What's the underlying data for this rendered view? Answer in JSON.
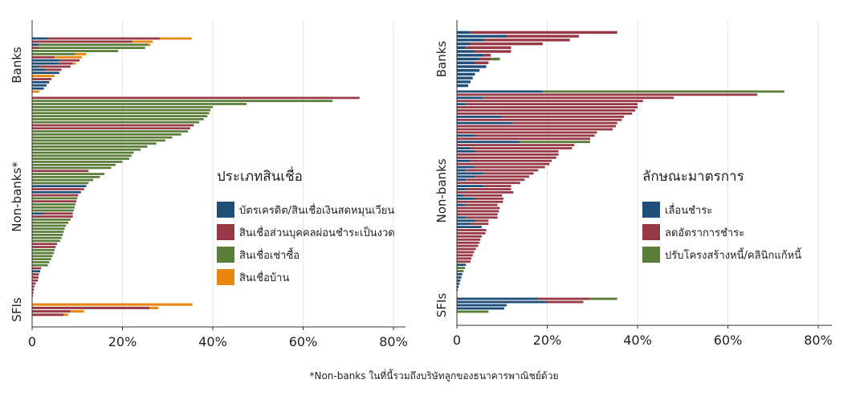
{
  "colors": {
    "blue": "#1f4e79",
    "red": "#973a45",
    "green": "#5a7d3a",
    "orange": "#e8870e",
    "grid": "#e6e6e6",
    "axis": "#333333"
  },
  "footnote": "*Non-banks ในที่นี้รวมถึงบริษัทลูกของธนาคารพาณิชย์ด้วย",
  "chart_data": [
    {
      "type": "bar",
      "orientation": "horizontal",
      "stacked": true,
      "xlim": [
        0,
        80
      ],
      "xticks": [
        "0",
        "20%",
        "40%",
        "60%",
        "80%"
      ],
      "grid": true,
      "legend": {
        "title": "ประเภทสินเชื่อ",
        "placement": "right",
        "items": [
          {
            "label": "บัตรเครดิต/สินเชื่อเงินสดหมุนเวียน",
            "color": "blue"
          },
          {
            "label": "สินเชื่อส่วนบุคคลผ่อนชำระเป็นงวด",
            "color": "red"
          },
          {
            "label": "สินเชื่อเช่าซื้อ",
            "color": "green"
          },
          {
            "label": "สินเชื่อบ้าน",
            "color": "orange"
          }
        ]
      },
      "groups": [
        {
          "label": "Banks",
          "series_keys": [
            "blue",
            "red",
            "green",
            "orange"
          ],
          "rows": [
            [
              3.5,
              24.8,
              0,
              7
            ],
            [
              0,
              22.2,
              0,
              4.5
            ],
            [
              1.5,
              0,
              24.2,
              0.5
            ],
            [
              0,
              1.5,
              23.5,
              0
            ],
            [
              0,
              0,
              19,
              0
            ],
            [
              0,
              0,
              9.5,
              2.5
            ],
            [
              0,
              5,
              0,
              6
            ],
            [
              6.2,
              4.3,
              0,
              0
            ],
            [
              6,
              3,
              0,
              0.7
            ],
            [
              1.5,
              7,
              0,
              0
            ],
            [
              3,
              3.5,
              0,
              0
            ],
            [
              6,
              0,
              0,
              0
            ],
            [
              0,
              0,
              0,
              5
            ],
            [
              0,
              4.3,
              0,
              0
            ],
            [
              3.8,
              0,
              0,
              0
            ],
            [
              3.2,
              0,
              0,
              0
            ],
            [
              2.6,
              0,
              0,
              0
            ],
            [
              0,
              0,
              0,
              1.6
            ]
          ]
        },
        {
          "label": "Non-banks*",
          "series_keys": [
            "blue",
            "red",
            "green",
            "orange"
          ],
          "rows": [
            [
              0,
              72.5,
              0,
              0
            ],
            [
              0,
              0,
              66.5,
              0
            ],
            [
              0,
              0,
              47.5,
              0
            ],
            [
              0,
              0,
              40,
              0
            ],
            [
              0,
              0,
              39.5,
              0
            ],
            [
              0,
              0,
              39.2,
              0
            ],
            [
              0,
              0,
              38.8,
              0
            ],
            [
              0,
              0,
              38,
              0
            ],
            [
              0,
              0,
              37,
              0
            ],
            [
              0,
              35.8,
              0,
              0
            ],
            [
              0,
              35,
              0,
              0
            ],
            [
              0,
              0,
              34.5,
              0
            ],
            [
              0,
              0,
              33,
              0
            ],
            [
              0,
              0,
              31,
              0
            ],
            [
              0,
              0,
              29.5,
              0
            ],
            [
              0,
              0,
              27.5,
              0
            ],
            [
              0,
              0,
              25.5,
              0
            ],
            [
              0,
              0,
              24,
              0
            ],
            [
              0,
              0,
              22.5,
              0
            ],
            [
              0,
              0,
              22,
              0
            ],
            [
              0,
              0,
              21.5,
              0
            ],
            [
              0,
              0,
              20,
              0
            ],
            [
              0,
              0,
              18.5,
              0
            ],
            [
              0,
              0,
              17.5,
              0
            ],
            [
              0,
              12.5,
              0,
              0
            ],
            [
              0,
              0,
              16,
              0
            ],
            [
              0,
              0,
              15,
              0
            ],
            [
              0,
              0,
              13.5,
              0
            ],
            [
              0,
              0,
              12.5,
              0
            ],
            [
              12,
              0,
              0,
              0
            ],
            [
              0,
              11.5,
              0,
              0
            ],
            [
              10.8,
              0,
              0,
              0
            ],
            [
              0,
              10.2,
              0,
              0
            ],
            [
              0,
              0,
              10,
              0
            ],
            [
              0,
              9.8,
              0,
              0
            ],
            [
              0,
              0,
              9.6,
              0
            ],
            [
              0,
              0,
              9.4,
              0
            ],
            [
              0,
              0,
              9.2,
              0
            ],
            [
              2.5,
              6.5,
              0,
              0
            ],
            [
              0,
              9,
              0,
              0
            ],
            [
              0,
              0,
              8.5,
              0
            ],
            [
              0,
              0,
              8,
              0
            ],
            [
              0,
              0,
              7.5,
              0
            ],
            [
              0,
              0,
              7.2,
              0
            ],
            [
              0,
              0,
              7,
              0
            ],
            [
              0,
              0,
              6.8,
              0
            ],
            [
              0,
              0,
              6.5,
              0
            ],
            [
              0,
              0,
              6.2,
              0
            ],
            [
              0,
              5.5,
              0,
              0
            ],
            [
              0,
              5.2,
              0,
              0
            ],
            [
              0,
              0,
              5,
              0
            ],
            [
              0,
              0,
              4.8,
              0
            ],
            [
              0,
              0,
              4.5,
              0
            ],
            [
              0,
              0,
              4.2,
              0
            ],
            [
              0,
              0,
              3.8,
              0
            ],
            [
              0,
              0,
              3.5,
              0
            ],
            [
              0,
              2,
              0,
              0
            ],
            [
              1.8,
              0,
              0,
              0
            ],
            [
              0,
              1.5,
              0,
              0
            ],
            [
              0,
              1.4,
              0,
              0
            ],
            [
              0,
              1.3,
              0,
              0
            ],
            [
              0,
              0.8,
              0,
              0
            ],
            [
              0,
              0.5,
              0,
              0
            ],
            [
              0,
              0.4,
              0,
              0
            ],
            [
              0,
              0.3,
              0,
              0
            ],
            [
              0,
              0.2,
              0,
              0
            ]
          ]
        },
        {
          "label": "SFIs",
          "series_keys": [
            "blue",
            "red",
            "green",
            "orange"
          ],
          "rows": [
            [
              0,
              0,
              0,
              35.5
            ],
            [
              0,
              26,
              0,
              2
            ],
            [
              0,
              8.5,
              0,
              3
            ],
            [
              0,
              7,
              0,
              1
            ]
          ]
        }
      ]
    },
    {
      "type": "bar",
      "orientation": "horizontal",
      "stacked": true,
      "xlim": [
        0,
        80
      ],
      "xticks": [
        "0",
        "20%",
        "40%",
        "60%",
        "80%"
      ],
      "grid": true,
      "legend": {
        "title": "ลักษณะมาตรการ",
        "placement": "right",
        "items": [
          {
            "label": "เลื่อนชำระ",
            "color": "blue"
          },
          {
            "label": "ลดอัตราการชำระ",
            "color": "red"
          },
          {
            "label": "ปรับโครงสร้างหนี้/คลินิกแก้หนี้",
            "color": "green"
          }
        ]
      },
      "groups": [
        {
          "label": "Banks",
          "series_keys": [
            "blue",
            "red",
            "green"
          ],
          "rows": [
            [
              3,
              32.5,
              0
            ],
            [
              11,
              16,
              0
            ],
            [
              6,
              19,
              0
            ],
            [
              3,
              16,
              0
            ],
            [
              2,
              10,
              0
            ],
            [
              4,
              8,
              0
            ],
            [
              6,
              1.5,
              0
            ],
            [
              5,
              2.5,
              2
            ],
            [
              4,
              3,
              0
            ],
            [
              6.5,
              0,
              0
            ],
            [
              5,
              0,
              0
            ],
            [
              4,
              0,
              0
            ],
            [
              3.5,
              0,
              0
            ],
            [
              3,
              0,
              0
            ],
            [
              2.5,
              0,
              0
            ]
          ]
        },
        {
          "label": "Non-banks",
          "series_keys": [
            "blue",
            "red",
            "green"
          ],
          "rows": [
            [
              19,
              0,
              53.5
            ],
            [
              0,
              66.5,
              0
            ],
            [
              6,
              42,
              0
            ],
            [
              0,
              41.2,
              0
            ],
            [
              2,
              38,
              0
            ],
            [
              0,
              40,
              0
            ],
            [
              0,
              39.5,
              0
            ],
            [
              0,
              38.8,
              0
            ],
            [
              10,
              27,
              0
            ],
            [
              0,
              36.5,
              0
            ],
            [
              12.5,
              23,
              0
            ],
            [
              0,
              35.2,
              0
            ],
            [
              0,
              34.5,
              0
            ],
            [
              0,
              31,
              0
            ],
            [
              4,
              26.5,
              0
            ],
            [
              0,
              29.5,
              0
            ],
            [
              14,
              0,
              15.5
            ],
            [
              0,
              26,
              0
            ],
            [
              3,
              22.5,
              0
            ],
            [
              4,
              18.5,
              0
            ],
            [
              0,
              22.5,
              0
            ],
            [
              0,
              22,
              0
            ],
            [
              3,
              18,
              0
            ],
            [
              0,
              20.5,
              0
            ],
            [
              4,
              15.5,
              0
            ],
            [
              2,
              16,
              0
            ],
            [
              6,
              11,
              0
            ],
            [
              4,
              12,
              0
            ],
            [
              2,
              13,
              0
            ],
            [
              0,
              14,
              0
            ],
            [
              6,
              6,
              0
            ],
            [
              2,
              10,
              0
            ],
            [
              0,
              12.5,
              0
            ],
            [
              1.5,
              8.5,
              0
            ],
            [
              4,
              6.3,
              0
            ],
            [
              0,
              10.2,
              0
            ],
            [
              2,
              7,
              0
            ],
            [
              0,
              9.5,
              0
            ],
            [
              0,
              9.3,
              0
            ],
            [
              0,
              9,
              0
            ],
            [
              2,
              7,
              0
            ],
            [
              4,
              3,
              0
            ],
            [
              3,
              4,
              0
            ],
            [
              5.5,
              0,
              0
            ],
            [
              0,
              6.5,
              0
            ],
            [
              0,
              6.3,
              0
            ],
            [
              0,
              5.5,
              0
            ],
            [
              0,
              5.2,
              0
            ],
            [
              0,
              5,
              0
            ],
            [
              0,
              4.7,
              0
            ],
            [
              0,
              4.2,
              0
            ],
            [
              0,
              3.8,
              0
            ],
            [
              0,
              3.5,
              0
            ],
            [
              0,
              3.2,
              0
            ],
            [
              0,
              3,
              0
            ],
            [
              2,
              0,
              0
            ],
            [
              0,
              0,
              1.8
            ],
            [
              0,
              0,
              1.5
            ],
            [
              1.2,
              0,
              0
            ],
            [
              1,
              0,
              0
            ],
            [
              0.8,
              0,
              0
            ],
            [
              0.6,
              0,
              0
            ],
            [
              0.4,
              0,
              0
            ],
            [
              0.2,
              0,
              0
            ]
          ]
        },
        {
          "label": "SFIs",
          "series_keys": [
            "blue",
            "red",
            "green"
          ],
          "rows": [
            [
              18,
              11.5,
              6
            ],
            [
              20,
              8,
              0
            ],
            [
              11,
              0,
              0
            ],
            [
              10.5,
              0,
              0
            ],
            [
              0,
              0,
              7
            ]
          ]
        }
      ]
    }
  ]
}
